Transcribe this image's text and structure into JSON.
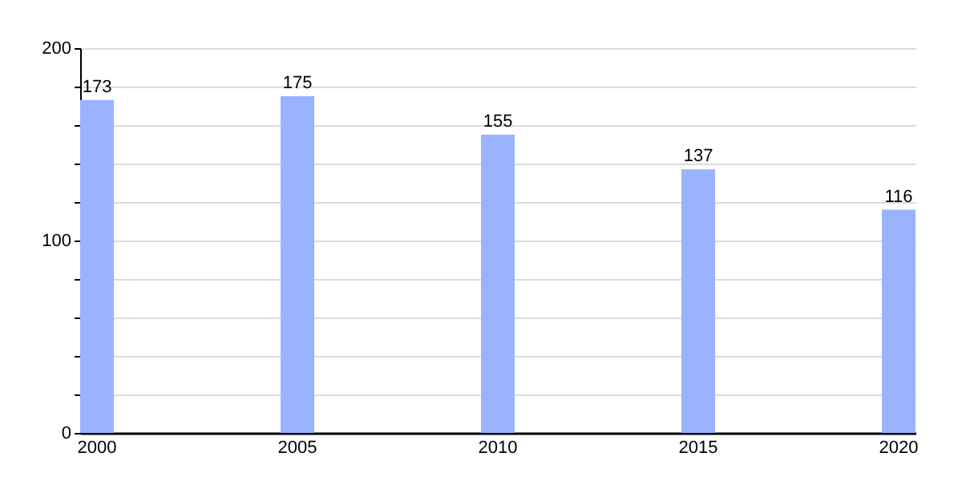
{
  "chart_data": {
    "type": "bar",
    "categories": [
      "2000",
      "2005",
      "2010",
      "2015",
      "2020"
    ],
    "values": [
      173,
      175,
      155,
      137,
      116
    ],
    "color": "#99b3ff",
    "ylim": [
      0,
      200
    ],
    "yticks": [
      0,
      {
        "value": 20,
        "label": null
      },
      {
        "value": 40,
        "label": null
      },
      {
        "value": 60,
        "label": null
      },
      {
        "value": 80,
        "label": null
      },
      100,
      {
        "value": 120,
        "label": null
      },
      {
        "value": 140,
        "label": null
      },
      {
        "value": 160,
        "label": null
      },
      {
        "value": 180,
        "label": null
      },
      200
    ],
    "grid": true,
    "data_labels": true
  }
}
